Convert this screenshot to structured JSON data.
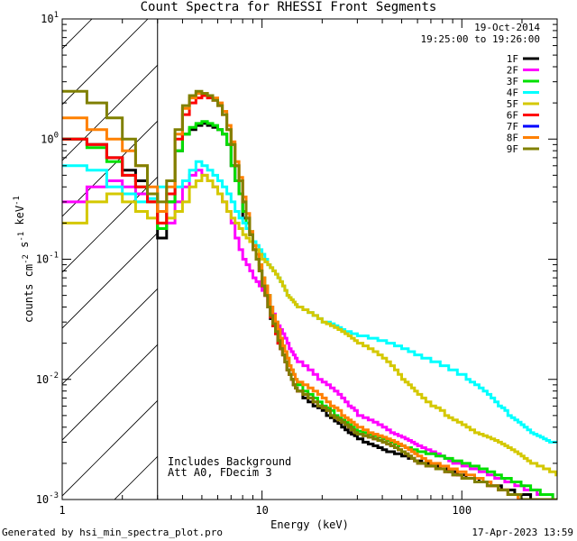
{
  "title": "Count Spectra for RHESSI Front Segments",
  "legend": {
    "date": "19-Oct-2014",
    "time_range": "19:25:00 to 19:26:00",
    "entries": [
      {
        "label": "1F",
        "color": "#000000"
      },
      {
        "label": "2F",
        "color": "#ff00ff"
      },
      {
        "label": "3F",
        "color": "#00e000"
      },
      {
        "label": "4F",
        "color": "#00ffff"
      },
      {
        "label": "5F",
        "color": "#d4c800"
      },
      {
        "label": "6F",
        "color": "#ff0000"
      },
      {
        "label": "7F",
        "color": "#0000ff"
      },
      {
        "label": "8F",
        "color": "#ff8000"
      },
      {
        "label": "9F",
        "color": "#808000"
      }
    ]
  },
  "notes": [
    "Includes Background",
    "Att A0, FDecim 3"
  ],
  "footer": {
    "generated": "Generated by hsi_min_spectra_plot.pro",
    "timestamp": "17-Apr-2023 13:59"
  },
  "chart_data": {
    "type": "line",
    "title": "Count Spectra for RHESSI Front Segments",
    "xlabel": "Energy (keV)",
    "ylabel": "counts cm^-2 s^-1 keV^-1",
    "xscale": "log",
    "yscale": "log",
    "xlim": [
      1,
      300
    ],
    "ylim": [
      0.001,
      10
    ],
    "xticks": [
      {
        "value": 1,
        "label": "1"
      },
      {
        "value": 10,
        "label": "10"
      },
      {
        "value": 100,
        "label": "100"
      }
    ],
    "yticks": [
      {
        "value": 0.001,
        "label": "10^-3"
      },
      {
        "value": 0.01,
        "label": "10^-2"
      },
      {
        "value": 0.1,
        "label": "10^-1"
      },
      {
        "value": 1,
        "label": "10^0"
      },
      {
        "value": 10,
        "label": "10^1"
      }
    ],
    "hatched_region": [
      1,
      3
    ],
    "legend_position": "top-right",
    "energy_bins": [
      1,
      1.33,
      1.67,
      2,
      2.33,
      2.67,
      3,
      3.33,
      3.67,
      4,
      4.33,
      4.67,
      5,
      5.33,
      5.67,
      6,
      6.33,
      6.67,
      7,
      7.33,
      7.67,
      8,
      8.33,
      8.67,
      9,
      9.33,
      9.67,
      10,
      10.33,
      10.67,
      11,
      11.33,
      11.67,
      12,
      12.33,
      12.67,
      13,
      13.33,
      13.67,
      14,
      14.33,
      14.67,
      15,
      16,
      17,
      18,
      19,
      20,
      21,
      22,
      23,
      24,
      25,
      26,
      27,
      28,
      29,
      30,
      32,
      34,
      36,
      38,
      40,
      42,
      44,
      46,
      48,
      50,
      52,
      54,
      56,
      58,
      60,
      63,
      66,
      70,
      74,
      78,
      82,
      86,
      90,
      95,
      100,
      105,
      110,
      116,
      122,
      128,
      134,
      140,
      146,
      152,
      158,
      164,
      170,
      177,
      184,
      191,
      198,
      205,
      213,
      221,
      229,
      238,
      247,
      256,
      265,
      275,
      285,
      296,
      300
    ],
    "series": [
      {
        "name": "1F",
        "values": [
          1.0,
          0.9,
          0.7,
          0.55,
          0.45,
          0.35,
          0.15,
          0.3,
          0.8,
          1.1,
          1.2,
          1.3,
          1.35,
          1.3,
          1.25,
          1.2,
          1.1,
          0.9,
          0.6,
          0.45,
          0.35,
          0.22,
          0.18,
          0.16,
          0.12,
          0.1,
          0.08,
          0.06,
          0.05,
          0.04,
          0.032,
          0.028,
          0.024,
          0.02,
          0.018,
          0.016,
          0.014,
          0.012,
          0.011,
          0.01,
          0.009,
          0.0085,
          0.008,
          0.007,
          0.0065,
          0.006,
          0.0058,
          0.0055,
          0.005,
          0.0048,
          0.0045,
          0.0043,
          0.004,
          0.0038,
          0.0036,
          0.0035,
          0.0034,
          0.0032,
          0.003,
          0.0029,
          0.0028,
          0.0027,
          0.0026,
          0.0025,
          0.0025,
          0.0024,
          0.0024,
          0.0023,
          0.0023,
          0.0022,
          0.0022,
          0.0021,
          0.0021,
          0.002,
          0.002,
          0.0019,
          0.0019,
          0.0018,
          0.0018,
          0.0017,
          0.0017,
          0.0016,
          0.0016,
          0.0015,
          0.0015,
          0.0015,
          0.0014,
          0.0014,
          0.0014,
          0.0013,
          0.0013,
          0.0013,
          0.0012,
          0.0012,
          0.0012,
          0.0012,
          0.0011,
          0.0011,
          0.0011,
          0.0011,
          0.0011,
          0.001,
          0.001,
          0.001,
          0.001,
          0.001,
          0.001,
          0.001,
          0.001,
          0.001,
          0.001
        ],
        "color": "#000000"
      },
      {
        "name": "2F",
        "values": [
          0.3,
          0.4,
          0.45,
          0.4,
          0.35,
          0.3,
          0.25,
          0.2,
          0.3,
          0.4,
          0.5,
          0.55,
          0.5,
          0.45,
          0.4,
          0.35,
          0.3,
          0.25,
          0.2,
          0.15,
          0.12,
          0.1,
          0.09,
          0.08,
          0.07,
          0.065,
          0.06,
          0.055,
          0.05,
          0.045,
          0.04,
          0.035,
          0.03,
          0.028,
          0.026,
          0.024,
          0.022,
          0.02,
          0.018,
          0.017,
          0.016,
          0.015,
          0.014,
          0.013,
          0.012,
          0.011,
          0.01,
          0.0095,
          0.009,
          0.0085,
          0.008,
          0.0075,
          0.007,
          0.0065,
          0.006,
          0.0058,
          0.0055,
          0.005,
          0.0048,
          0.0046,
          0.0044,
          0.0042,
          0.004,
          0.0038,
          0.0036,
          0.0035,
          0.0034,
          0.0033,
          0.0032,
          0.0031,
          0.003,
          0.0029,
          0.0028,
          0.0027,
          0.0026,
          0.0025,
          0.0024,
          0.0023,
          0.0022,
          0.0021,
          0.002,
          0.002,
          0.0019,
          0.0019,
          0.0018,
          0.0018,
          0.0017,
          0.0017,
          0.0016,
          0.0016,
          0.0015,
          0.0015,
          0.0015,
          0.0014,
          0.0014,
          0.0014,
          0.0013,
          0.0013,
          0.0013,
          0.0012,
          0.0012,
          0.0012,
          0.0012,
          0.0011,
          0.0011,
          0.0011,
          0.0011,
          0.0011,
          0.001,
          0.001,
          0.001
        ],
        "color": "#ff00ff"
      },
      {
        "name": "3F",
        "values": [
          1.0,
          0.85,
          0.65,
          0.5,
          0.4,
          0.3,
          0.18,
          0.3,
          0.8,
          1.1,
          1.25,
          1.35,
          1.4,
          1.35,
          1.3,
          1.2,
          1.1,
          0.9,
          0.6,
          0.45,
          0.35,
          0.25,
          0.2,
          0.17,
          0.13,
          0.11,
          0.09,
          0.07,
          0.06,
          0.05,
          0.04,
          0.034,
          0.03,
          0.026,
          0.022,
          0.019,
          0.017,
          0.015,
          0.013,
          0.012,
          0.011,
          0.01,
          0.009,
          0.008,
          0.0075,
          0.007,
          0.0065,
          0.006,
          0.0058,
          0.0055,
          0.005,
          0.0048,
          0.0046,
          0.0044,
          0.0042,
          0.004,
          0.0038,
          0.0037,
          0.0036,
          0.0035,
          0.0034,
          0.0033,
          0.0032,
          0.0031,
          0.003,
          0.0029,
          0.0028,
          0.0028,
          0.0027,
          0.0027,
          0.0026,
          0.0026,
          0.0025,
          0.0025,
          0.0024,
          0.0024,
          0.0023,
          0.0023,
          0.0022,
          0.0022,
          0.0021,
          0.0021,
          0.002,
          0.002,
          0.0019,
          0.0019,
          0.0018,
          0.0018,
          0.0017,
          0.0017,
          0.0016,
          0.0016,
          0.0015,
          0.0015,
          0.0015,
          0.0014,
          0.0014,
          0.0014,
          0.0013,
          0.0013,
          0.0013,
          0.0012,
          0.0012,
          0.0012,
          0.0011,
          0.0011,
          0.0011,
          0.0011,
          0.001,
          0.001,
          0.001
        ],
        "color": "#00e000"
      },
      {
        "name": "4F",
        "values": [
          0.6,
          0.55,
          0.4,
          0.35,
          0.3,
          0.32,
          0.4,
          0.35,
          0.4,
          0.45,
          0.55,
          0.65,
          0.6,
          0.55,
          0.5,
          0.45,
          0.4,
          0.35,
          0.3,
          0.25,
          0.22,
          0.2,
          0.18,
          0.16,
          0.14,
          0.13,
          0.12,
          0.11,
          0.1,
          0.09,
          0.085,
          0.08,
          0.075,
          0.07,
          0.065,
          0.06,
          0.055,
          0.05,
          0.048,
          0.046,
          0.044,
          0.042,
          0.04,
          0.038,
          0.036,
          0.034,
          0.032,
          0.03,
          0.03,
          0.029,
          0.028,
          0.027,
          0.026,
          0.025,
          0.025,
          0.024,
          0.024,
          0.023,
          0.023,
          0.022,
          0.022,
          0.021,
          0.021,
          0.02,
          0.02,
          0.019,
          0.019,
          0.018,
          0.018,
          0.017,
          0.017,
          0.016,
          0.016,
          0.015,
          0.015,
          0.014,
          0.014,
          0.013,
          0.013,
          0.012,
          0.012,
          0.011,
          0.011,
          0.01,
          0.0095,
          0.009,
          0.0085,
          0.008,
          0.0075,
          0.007,
          0.0065,
          0.006,
          0.0058,
          0.0055,
          0.005,
          0.0048,
          0.0046,
          0.0044,
          0.0042,
          0.004,
          0.0038,
          0.0036,
          0.0035,
          0.0034,
          0.0033,
          0.0032,
          0.0031,
          0.003,
          0.003,
          0.003,
          0.003
        ],
        "color": "#00ffff"
      },
      {
        "name": "5F",
        "values": [
          0.2,
          0.3,
          0.35,
          0.3,
          0.25,
          0.22,
          0.2,
          0.22,
          0.25,
          0.3,
          0.4,
          0.45,
          0.5,
          0.45,
          0.4,
          0.35,
          0.3,
          0.25,
          0.22,
          0.2,
          0.18,
          0.16,
          0.15,
          0.14,
          0.13,
          0.12,
          0.11,
          0.1,
          0.095,
          0.09,
          0.085,
          0.08,
          0.075,
          0.07,
          0.065,
          0.06,
          0.055,
          0.05,
          0.048,
          0.046,
          0.044,
          0.042,
          0.04,
          0.038,
          0.036,
          0.034,
          0.032,
          0.03,
          0.029,
          0.028,
          0.027,
          0.026,
          0.025,
          0.024,
          0.023,
          0.022,
          0.021,
          0.02,
          0.019,
          0.018,
          0.017,
          0.016,
          0.015,
          0.014,
          0.013,
          0.012,
          0.011,
          0.01,
          0.0095,
          0.009,
          0.0085,
          0.008,
          0.0075,
          0.007,
          0.0065,
          0.006,
          0.0058,
          0.0055,
          0.005,
          0.0048,
          0.0046,
          0.0044,
          0.0042,
          0.004,
          0.0038,
          0.0036,
          0.0035,
          0.0034,
          0.0033,
          0.0032,
          0.0031,
          0.003,
          0.0029,
          0.0028,
          0.0027,
          0.0026,
          0.0025,
          0.0024,
          0.0023,
          0.0022,
          0.0021,
          0.002,
          0.002,
          0.0019,
          0.0019,
          0.0018,
          0.0018,
          0.0017,
          0.0017,
          0.0016,
          0.0016
        ],
        "color": "#d4c800"
      },
      {
        "name": "6F",
        "values": [
          1.0,
          0.9,
          0.7,
          0.5,
          0.4,
          0.3,
          0.2,
          0.35,
          1.0,
          1.6,
          2.0,
          2.2,
          2.3,
          2.2,
          2.1,
          1.9,
          1.6,
          1.2,
          0.9,
          0.6,
          0.45,
          0.3,
          0.22,
          0.16,
          0.12,
          0.1,
          0.08,
          0.06,
          0.05,
          0.04,
          0.033,
          0.028,
          0.024,
          0.02,
          0.018,
          0.016,
          0.014,
          0.012,
          0.011,
          0.01,
          0.009,
          0.0085,
          0.008,
          0.0075,
          0.007,
          0.0065,
          0.006,
          0.0058,
          0.0055,
          0.005,
          0.0048,
          0.0046,
          0.0044,
          0.0042,
          0.004,
          0.0038,
          0.0036,
          0.0035,
          0.0034,
          0.0033,
          0.0032,
          0.0031,
          0.003,
          0.0029,
          0.0028,
          0.0027,
          0.0026,
          0.0025,
          0.0024,
          0.0023,
          0.0022,
          0.0021,
          0.002,
          0.002,
          0.0019,
          0.0019,
          0.0018,
          0.0018,
          0.0017,
          0.0017,
          0.0016,
          0.0016,
          0.0015,
          0.0015,
          0.0015,
          0.0014,
          0.0014,
          0.0014,
          0.0013,
          0.0013,
          0.0013,
          0.0012,
          0.0012,
          0.0012,
          0.0011,
          0.0011,
          0.0011,
          0.0011,
          0.001,
          0.001,
          0.001,
          0.001,
          0.001,
          0.001,
          0.001,
          0.001,
          0.001,
          0.001,
          0.001,
          0.001,
          0.001
        ],
        "color": "#ff0000"
      },
      {
        "name": "7F",
        "values": [],
        "color": "#0000ff"
      },
      {
        "name": "8F",
        "values": [
          1.5,
          1.2,
          1.0,
          0.8,
          0.6,
          0.4,
          0.25,
          0.4,
          1.1,
          1.8,
          2.2,
          2.4,
          2.4,
          2.3,
          2.2,
          2.0,
          1.7,
          1.3,
          0.95,
          0.65,
          0.48,
          0.33,
          0.24,
          0.17,
          0.13,
          0.11,
          0.09,
          0.07,
          0.06,
          0.05,
          0.04,
          0.034,
          0.03,
          0.026,
          0.022,
          0.019,
          0.017,
          0.015,
          0.013,
          0.012,
          0.011,
          0.01,
          0.0095,
          0.009,
          0.0085,
          0.008,
          0.0075,
          0.007,
          0.0065,
          0.006,
          0.0058,
          0.0055,
          0.005,
          0.0048,
          0.0046,
          0.0044,
          0.0042,
          0.004,
          0.0038,
          0.0036,
          0.0035,
          0.0034,
          0.0033,
          0.0032,
          0.0031,
          0.003,
          0.0029,
          0.0028,
          0.0027,
          0.0026,
          0.0025,
          0.0024,
          0.0023,
          0.0022,
          0.0021,
          0.002,
          0.002,
          0.0019,
          0.0019,
          0.0018,
          0.0018,
          0.0017,
          0.0017,
          0.0016,
          0.0016,
          0.0015,
          0.0015,
          0.0014,
          0.0014,
          0.0013,
          0.0013,
          0.0012,
          0.0012,
          0.0012,
          0.0011,
          0.0011,
          0.0011,
          0.001,
          0.001,
          0.001,
          0.001,
          0.001,
          0.001,
          0.001,
          0.001,
          0.001,
          0.001,
          0.001,
          0.001,
          0.001,
          0.001
        ],
        "color": "#ff8000"
      },
      {
        "name": "9F",
        "values": [
          2.5,
          2.0,
          1.5,
          1.0,
          0.6,
          0.35,
          0.3,
          0.45,
          1.2,
          1.9,
          2.3,
          2.5,
          2.4,
          2.3,
          2.1,
          1.9,
          1.6,
          1.2,
          0.9,
          0.6,
          0.45,
          0.3,
          0.22,
          0.16,
          0.12,
          0.1,
          0.08,
          0.06,
          0.05,
          0.04,
          0.034,
          0.029,
          0.025,
          0.021,
          0.018,
          0.016,
          0.014,
          0.012,
          0.011,
          0.01,
          0.009,
          0.0085,
          0.008,
          0.0075,
          0.007,
          0.0065,
          0.006,
          0.0058,
          0.0055,
          0.005,
          0.0048,
          0.0046,
          0.0044,
          0.0042,
          0.004,
          0.0038,
          0.0036,
          0.0035,
          0.0034,
          0.0033,
          0.0032,
          0.0031,
          0.003,
          0.0029,
          0.0028,
          0.0027,
          0.0026,
          0.0025,
          0.0024,
          0.0023,
          0.0022,
          0.0021,
          0.002,
          0.002,
          0.0019,
          0.0019,
          0.0018,
          0.0018,
          0.0017,
          0.0017,
          0.0016,
          0.0016,
          0.0015,
          0.0015,
          0.0015,
          0.0014,
          0.0014,
          0.0014,
          0.0013,
          0.0013,
          0.0013,
          0.0012,
          0.0012,
          0.0012,
          0.0011,
          0.0011,
          0.0011,
          0.0011,
          0.001,
          0.001,
          0.001,
          0.001,
          0.001,
          0.001,
          0.001,
          0.001,
          0.001,
          0.001,
          0.001,
          0.001,
          0.001
        ],
        "color": "#808000"
      }
    ]
  }
}
